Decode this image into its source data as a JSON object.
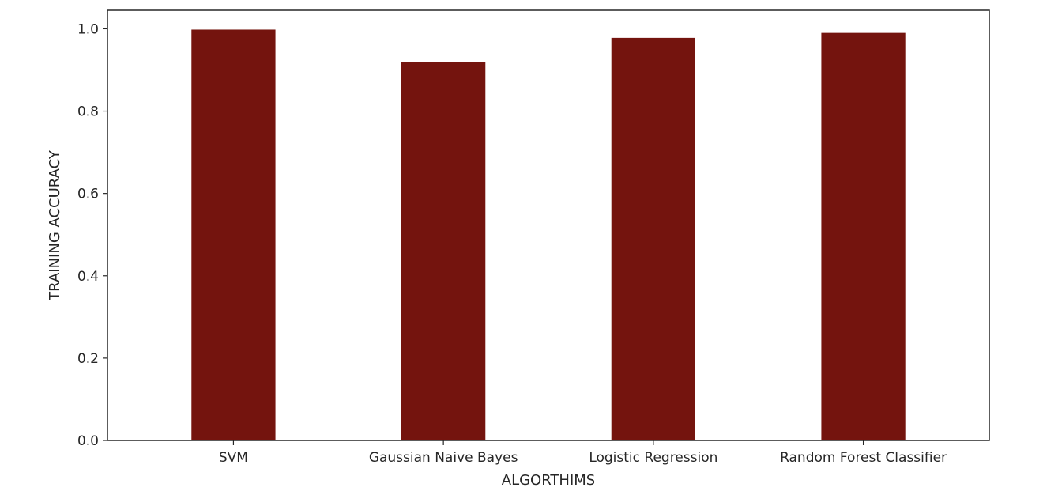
{
  "chart_data": {
    "type": "bar",
    "categories": [
      "SVM",
      "Gaussian Naive Bayes",
      "Logistic Regression",
      "Random Forest Classifier"
    ],
    "values": [
      0.998,
      0.92,
      0.978,
      0.99
    ],
    "title": "",
    "xlabel": "ALGORTHIMS",
    "ylabel": "TRAINING ACCURACY",
    "ylim": [
      0,
      1.045
    ],
    "yticks": [
      0.0,
      0.2,
      0.4,
      0.6,
      0.8,
      1.0
    ],
    "ytick_labels": [
      "0.0",
      "0.2",
      "0.4",
      "0.6",
      "0.8",
      "1.0"
    ],
    "bar_color": "#74140e",
    "grid": false,
    "legend": "none"
  }
}
